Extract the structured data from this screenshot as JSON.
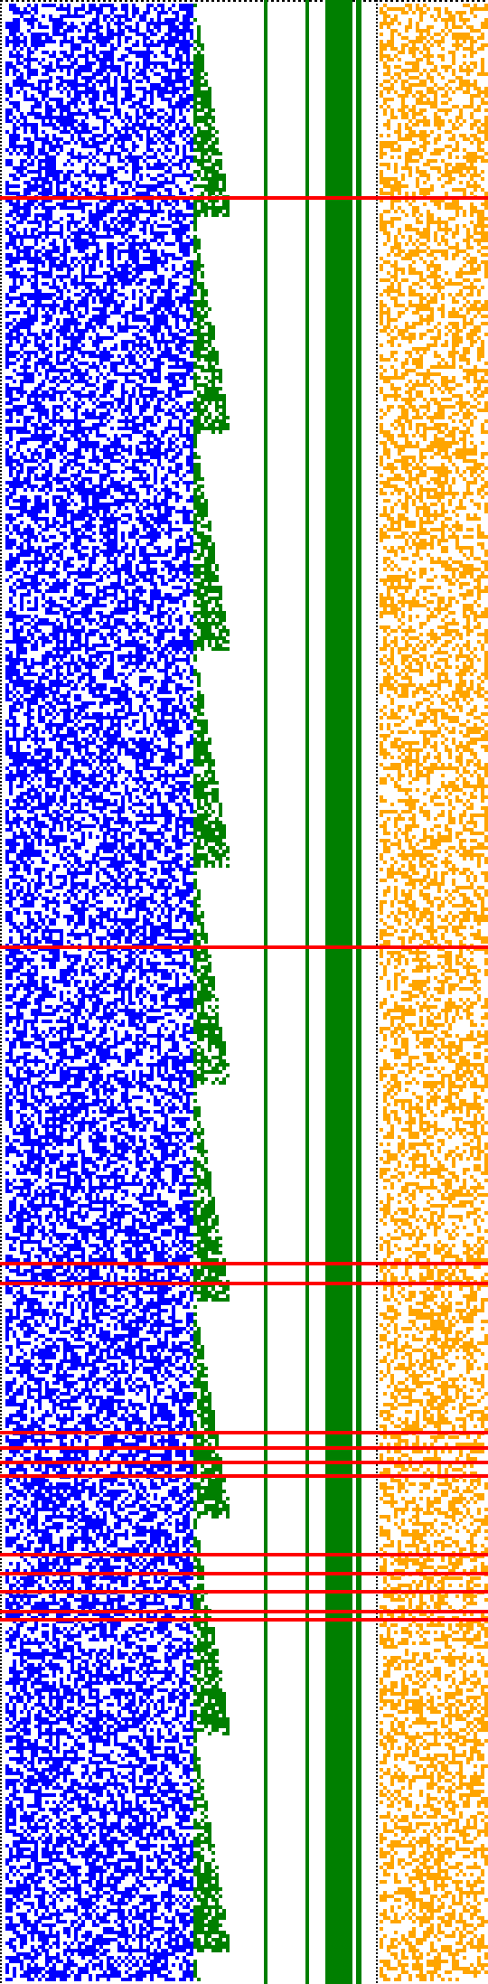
{
  "colors": {
    "background": "#ffffff",
    "blue_bits": "#0000ff",
    "green_bits": "#007f00",
    "green_solid": "#007f00",
    "orange_bits": "#ffa500",
    "red_rows": "#ff0000",
    "dotted_border": "#000000"
  },
  "description_free": true,
  "red_rows_visible": [
    217,
    1046,
    1396,
    1418,
    1583,
    1600,
    1616,
    1631,
    1718,
    1739,
    1759,
    1790,
    1781
  ]
}
